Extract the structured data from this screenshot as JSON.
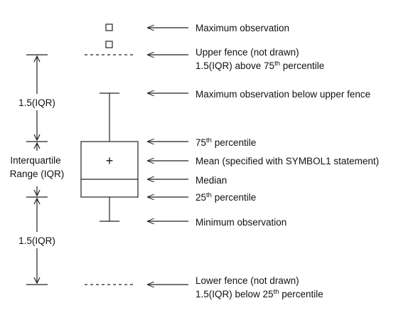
{
  "labels": {
    "max_obs": "Maximum observation",
    "upper_fence_1": "Upper fence (not drawn)",
    "upper_fence_2a": "1.5(IQR) above  75",
    "upper_fence_2sup": "th",
    "upper_fence_2b": " percentile",
    "max_below": "Maximum observation below upper fence",
    "p75_a": "75",
    "p75_sup": "th",
    "p75_b": " percentile",
    "mean": "Mean (specified with SYMBOL1 statement)",
    "median": "Median",
    "p25_a": "25",
    "p25_sup": "th",
    "p25_b": " percentile",
    "min_obs": "Minimum  observation",
    "lower_fence_1": "Lower fence (not drawn)",
    "lower_fence_2a": "1.5(IQR) below  25",
    "lower_fence_2sup": "th",
    "lower_fence_2b": " percentile"
  },
  "side": {
    "upper_iqr": "1.5(IQR)",
    "iqr_line1": "Interquartile",
    "iqr_line2": "Range (IQR)",
    "lower_iqr": "1.5(IQR)"
  },
  "mean_symbol": "+"
}
